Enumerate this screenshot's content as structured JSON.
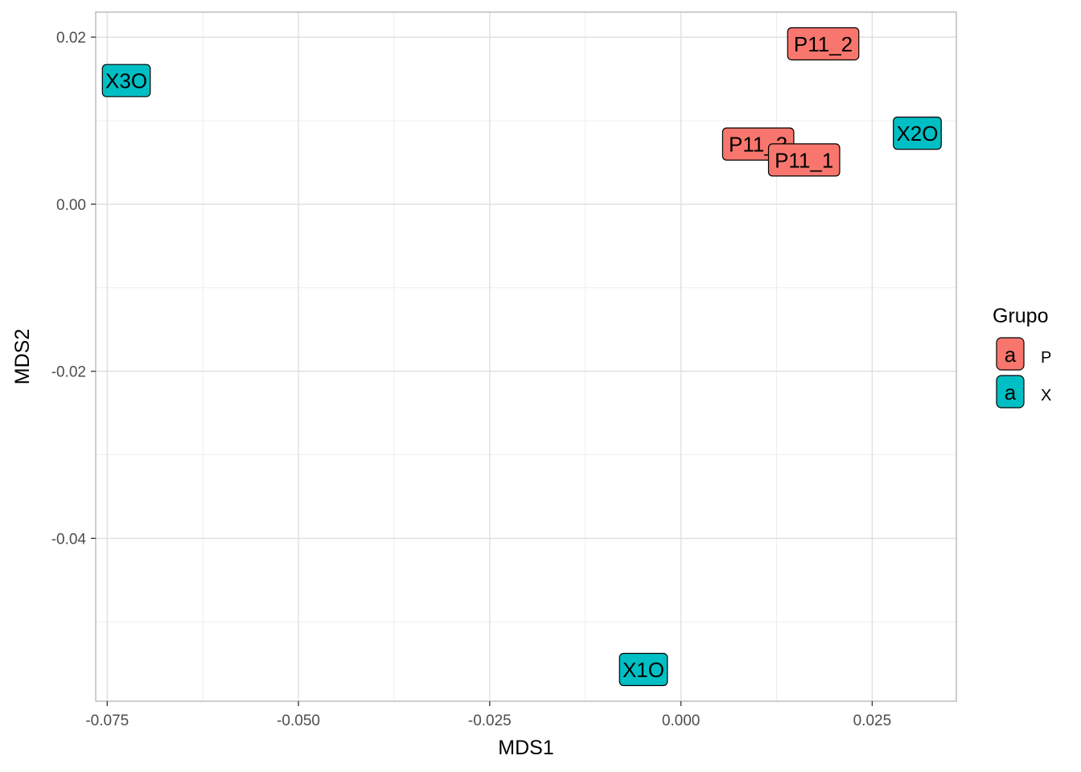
{
  "chart_data": {
    "type": "scatter",
    "title": "",
    "xlabel": "MDS1",
    "ylabel": "MDS2",
    "xlim": [
      -0.0765,
      0.036
    ],
    "ylim": [
      -0.0595,
      0.023
    ],
    "x_ticks": [
      -0.075,
      -0.05,
      -0.025,
      0.0,
      0.025
    ],
    "x_tick_labels": [
      "-0.075",
      "-0.050",
      "-0.025",
      "0.000",
      "0.025"
    ],
    "y_ticks": [
      0.02,
      0.0,
      -0.02,
      -0.04
    ],
    "y_tick_labels": [
      "0.02",
      "0.00",
      "-0.02",
      "-0.04"
    ],
    "grid": true,
    "points": [
      {
        "label": "X3O",
        "group": "X",
        "x": -0.0725,
        "y": 0.0148
      },
      {
        "label": "P11_2",
        "group": "P",
        "x": 0.0186,
        "y": 0.0192
      },
      {
        "label": "P11_3",
        "group": "P",
        "x": 0.0101,
        "y": 0.0072
      },
      {
        "label": "P11_1",
        "group": "P",
        "x": 0.0161,
        "y": 0.0053
      },
      {
        "label": "X2O",
        "group": "X",
        "x": 0.0309,
        "y": 0.0085
      },
      {
        "label": "X1O",
        "group": "X",
        "x": -0.0049,
        "y": -0.0557
      }
    ],
    "legend": {
      "title": "Grupo",
      "key_glyph": "a",
      "position": "right",
      "entries": [
        {
          "name": "P",
          "color": "#F8766D"
        },
        {
          "name": "X",
          "color": "#00BFC4"
        }
      ]
    },
    "colors": {
      "P": "#F8766D",
      "X": "#00BFC4"
    }
  }
}
